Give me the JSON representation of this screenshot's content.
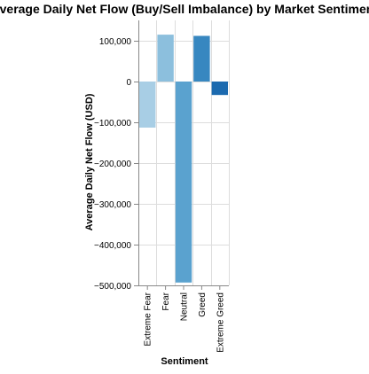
{
  "chart_data": {
    "type": "bar",
    "title": "Average Daily Net Flow (Buy/Sell Imbalance) by Market Sentiment",
    "xlabel": "Sentiment",
    "ylabel": "Average Daily Net Flow (USD)",
    "categories": [
      "Extreme Fear",
      "Fear",
      "Neutral",
      "Greed",
      "Extreme Greed"
    ],
    "values": [
      -113000,
      115000,
      -493000,
      112000,
      -33000
    ],
    "ylim": [
      -500000,
      150000
    ],
    "yticks": [
      -500000,
      -400000,
      -300000,
      -200000,
      -100000,
      0,
      100000
    ],
    "ytick_labels": [
      "−500,000",
      "−400,000",
      "−300,000",
      "−200,000",
      "−100,000",
      "0",
      "100,000"
    ],
    "bar_colors": [
      "#a8cee5",
      "#8cbfdd",
      "#5aa2cf",
      "#3787c0",
      "#1c6aaf"
    ],
    "grid": true,
    "legend": "none"
  }
}
